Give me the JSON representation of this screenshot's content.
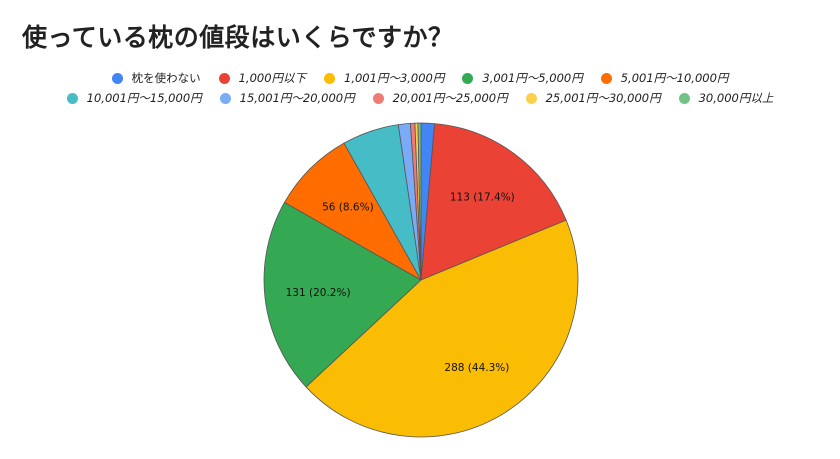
{
  "chart_data": {
    "type": "pie",
    "title": "使っている枕の値段はいくらですか？",
    "slices": [
      {
        "label": "枕を使わない",
        "value": 9,
        "color": "#4285f4"
      },
      {
        "label": "1,000円以下",
        "value": 113,
        "color": "#ea4335",
        "data_label": "113 (17.4%)"
      },
      {
        "label": "1,001円～3,000円",
        "value": 288,
        "color": "#fbbc04",
        "data_label": "288 (44.3%)"
      },
      {
        "label": "3,001円～5,000円",
        "value": 131,
        "color": "#34a853",
        "data_label": "131 (20.2%)"
      },
      {
        "label": "5,001円～10,000円",
        "value": 56,
        "color": "#ff6d01",
        "data_label": "56 (8.6%)"
      },
      {
        "label": "10,001円～15,000円",
        "value": 38,
        "color": "#46bdc6"
      },
      {
        "label": "15,001円～20,000円",
        "value": 8,
        "color": "#7baaf7"
      },
      {
        "label": "20,001円～25,000円",
        "value": 3,
        "color": "#f07b72"
      },
      {
        "label": "25,001円～30,000円",
        "value": 2,
        "color": "#fcd04f"
      },
      {
        "label": "30,000円以上",
        "value": 2,
        "color": "#71c287"
      }
    ],
    "legend_position": "top",
    "legend_rows": [
      [
        0,
        1,
        2,
        3,
        4
      ],
      [
        5,
        6,
        7,
        8,
        9
      ]
    ],
    "start_angle_deg": 0,
    "direction": "clockwise",
    "slice_border_color": "#555555"
  }
}
